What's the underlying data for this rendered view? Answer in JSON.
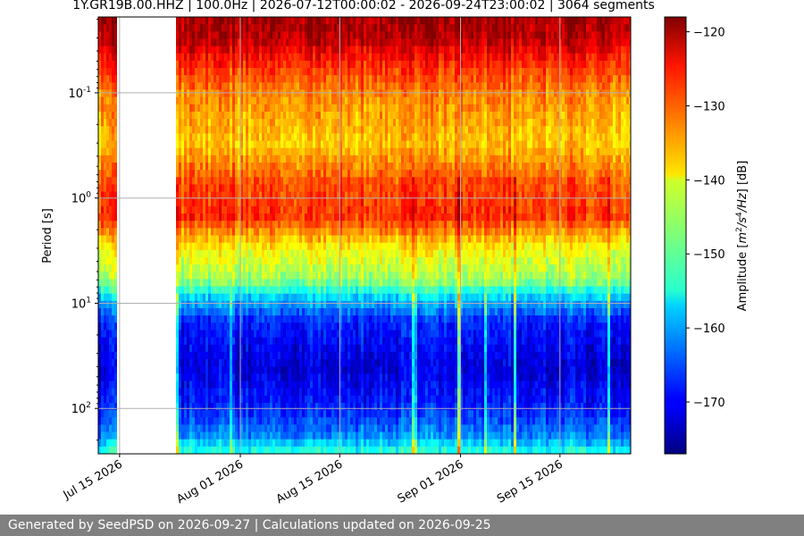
{
  "chart_data": {
    "type": "heatmap",
    "title": "1Y.GR19B.00.HHZ | 100.0Hz | 2026-07-12T00:00:02 - 2026-09-24T23:00:02 | 3064 segments",
    "ylabel": "Period [s]",
    "xlabel": "",
    "x_start": "2026-07-12T00:00:02",
    "x_end": "2026-09-24T23:00:02",
    "x_ticks": [
      "Jul 15 2026",
      "Aug 01 2026",
      "Aug 15 2026",
      "Sep 01 2026",
      "Sep 15 2026"
    ],
    "x_tick_dates": [
      "2026-07-15",
      "2026-08-01",
      "2026-08-15",
      "2026-09-01",
      "2026-09-15"
    ],
    "y_scale": "log",
    "y_inverted": true,
    "ylim": [
      0.019,
      270
    ],
    "y_ticks": [
      0.1,
      1,
      10,
      100
    ],
    "y_tick_labels": [
      "10^-1",
      "10^0",
      "10^1",
      "10^2"
    ],
    "grid": true,
    "data_gap": [
      "2026-07-15T00:00:00",
      "2026-07-22T18:00:00"
    ],
    "colorbar": {
      "label": "Amplitude [m^2/s^4/Hz] [dB]",
      "range": [
        -177,
        -118
      ],
      "ticks": [
        -120,
        -130,
        -140,
        -150,
        -160,
        -170
      ],
      "colormap": "jet"
    },
    "period_profile_db": [
      {
        "period": 0.019,
        "db": -120
      },
      {
        "period": 0.03,
        "db": -121
      },
      {
        "period": 0.05,
        "db": -127
      },
      {
        "period": 0.1,
        "db": -133
      },
      {
        "period": 0.3,
        "db": -137
      },
      {
        "period": 0.7,
        "db": -130
      },
      {
        "period": 1.5,
        "db": -128
      },
      {
        "period": 3,
        "db": -140
      },
      {
        "period": 6,
        "db": -146
      },
      {
        "period": 9,
        "db": -158
      },
      {
        "period": 15,
        "db": -168
      },
      {
        "period": 40,
        "db": -172
      },
      {
        "period": 100,
        "db": -168
      },
      {
        "period": 180,
        "db": -162
      },
      {
        "period": 270,
        "db": -152
      }
    ]
  },
  "footer": {
    "text": "Generated by SeedPSD on 2026-09-27 | Calculations updated on 2026-09-25",
    "background": "#808080"
  }
}
